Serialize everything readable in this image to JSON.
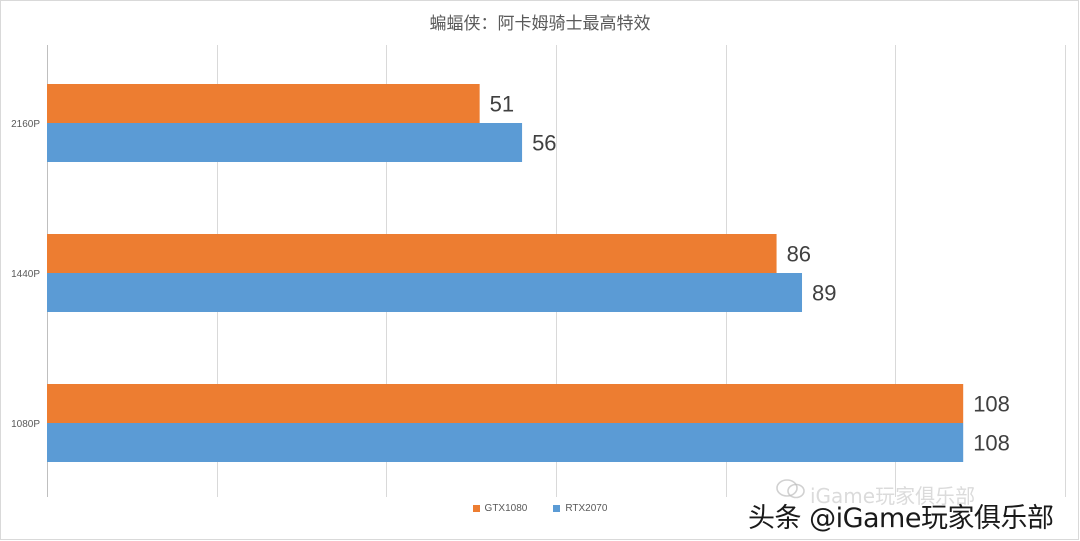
{
  "chart_data": {
    "type": "bar",
    "orientation": "horizontal",
    "title": "蝙蝠侠：阿卡姆骑士最高特效",
    "xlabel": "",
    "ylabel": "",
    "categories": [
      "2160P",
      "1440P",
      "1080P"
    ],
    "series": [
      {
        "name": "GTX1080",
        "color": "#ED7D31",
        "values": [
          51,
          86,
          108
        ]
      },
      {
        "name": "RTX2070",
        "color": "#5B9BD5",
        "values": [
          56,
          89,
          108
        ]
      }
    ],
    "xlim": [
      0,
      120
    ],
    "grid": true,
    "legend_position": "bottom"
  },
  "watermark": {
    "faint": "iGame玩家俱乐部",
    "main": "头条 @iGame玩家俱乐部"
  }
}
